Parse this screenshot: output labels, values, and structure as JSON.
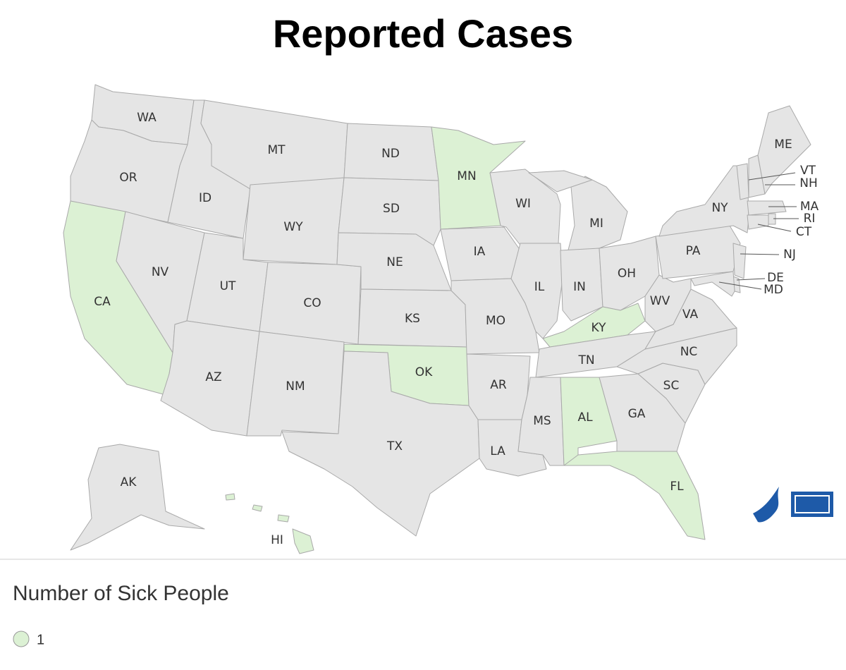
{
  "title": "Reported Cases",
  "states": [
    {
      "label": "WA"
    },
    {
      "label": "OR"
    },
    {
      "label": "CA",
      "cases": 1
    },
    {
      "label": "NV"
    },
    {
      "label": "ID"
    },
    {
      "label": "MT"
    },
    {
      "label": "WY"
    },
    {
      "label": "UT"
    },
    {
      "label": "AZ"
    },
    {
      "label": "CO"
    },
    {
      "label": "NM"
    },
    {
      "label": "ND"
    },
    {
      "label": "SD"
    },
    {
      "label": "NE"
    },
    {
      "label": "KS"
    },
    {
      "label": "OK",
      "cases": 1
    },
    {
      "label": "TX"
    },
    {
      "label": "MN",
      "cases": 1
    },
    {
      "label": "IA"
    },
    {
      "label": "MO"
    },
    {
      "label": "AR"
    },
    {
      "label": "LA"
    },
    {
      "label": "WI"
    },
    {
      "label": "IL"
    },
    {
      "label": "MI"
    },
    {
      "label": "IN"
    },
    {
      "label": "OH"
    },
    {
      "label": "KY",
      "cases": 1
    },
    {
      "label": "TN"
    },
    {
      "label": "MS"
    },
    {
      "label": "AL",
      "cases": 1
    },
    {
      "label": "GA"
    },
    {
      "label": "FL",
      "cases": 1
    },
    {
      "label": "SC"
    },
    {
      "label": "NC"
    },
    {
      "label": "VA"
    },
    {
      "label": "WV"
    },
    {
      "label": "PA"
    },
    {
      "label": "NY"
    },
    {
      "label": "NJ"
    },
    {
      "label": "DE"
    },
    {
      "label": "MD"
    },
    {
      "label": "VT"
    },
    {
      "label": "NH"
    },
    {
      "label": "ME"
    },
    {
      "label": "MA"
    },
    {
      "label": "CT"
    },
    {
      "label": "RI"
    },
    {
      "label": "AK"
    },
    {
      "label": "HI",
      "cases": 1
    }
  ],
  "legend": {
    "title": "Number of Sick People",
    "items": [
      {
        "label": 1,
        "color": "#dcf1d4"
      }
    ]
  }
}
